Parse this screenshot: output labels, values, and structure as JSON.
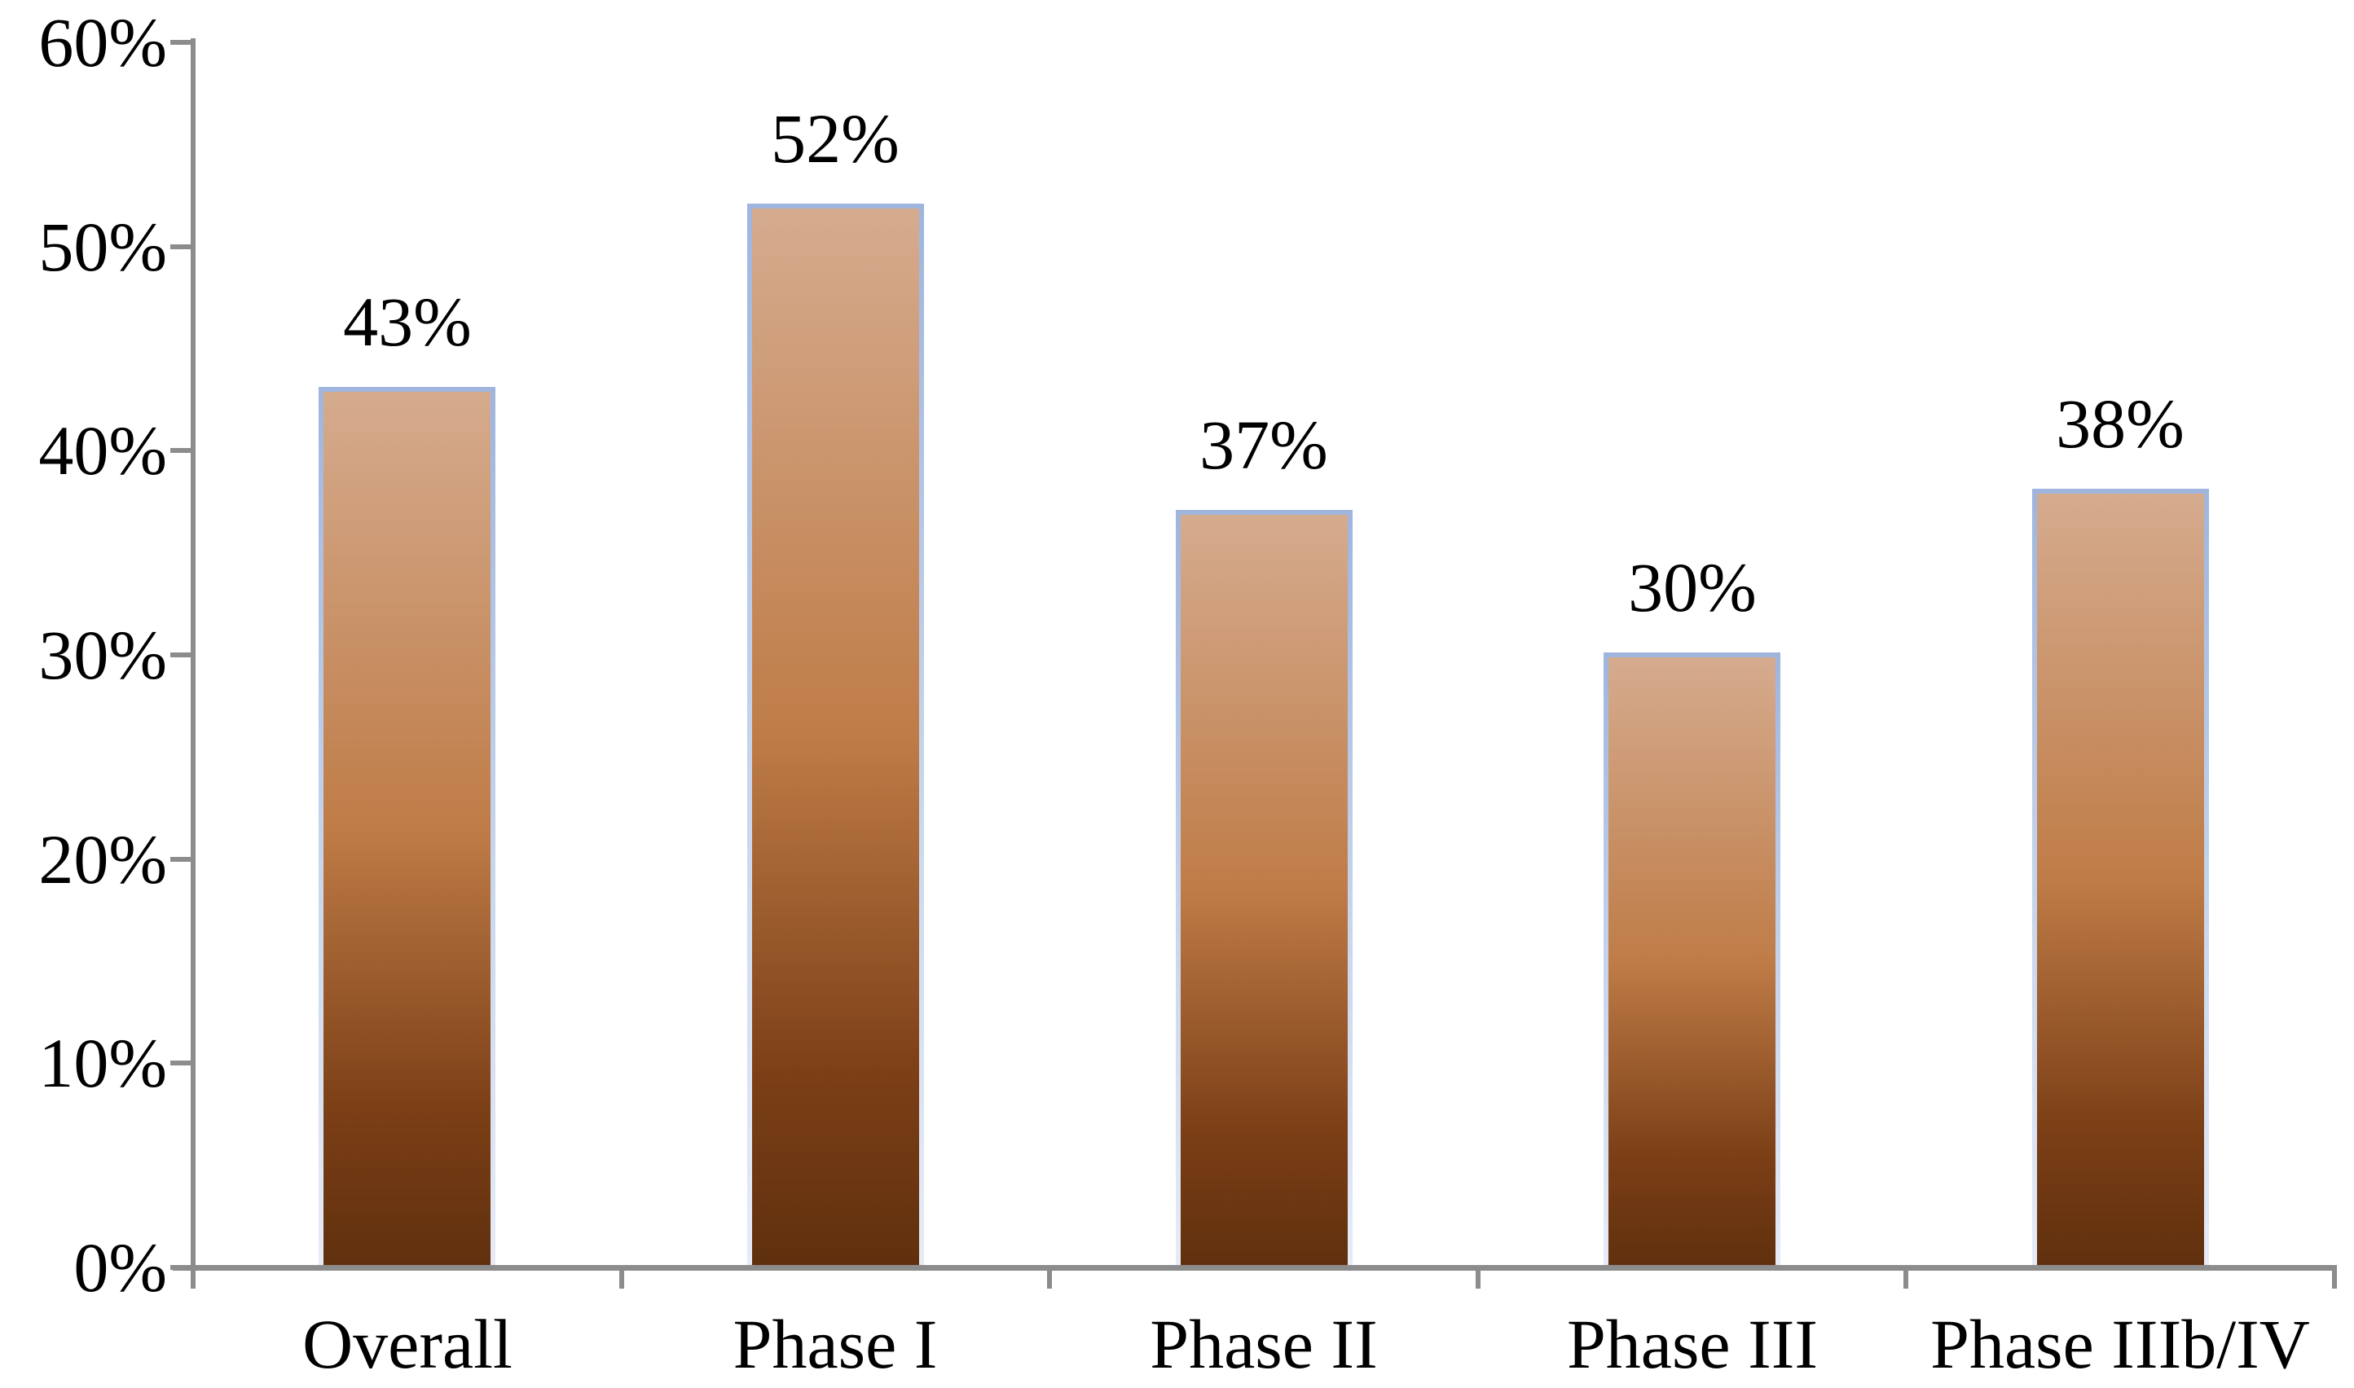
{
  "chart_data": {
    "type": "bar",
    "title": "",
    "xlabel": "",
    "ylabel": "",
    "categories": [
      "Overall",
      "Phase I",
      "Phase II",
      "Phase III",
      "Phase IIIb/IV"
    ],
    "values": [
      43,
      52,
      37,
      30,
      38
    ],
    "data_labels": [
      "43%",
      "52%",
      "37%",
      "30%",
      "38%"
    ],
    "y_ticks": [
      {
        "value": 0,
        "label": "0%"
      },
      {
        "value": 10,
        "label": "10%"
      },
      {
        "value": 20,
        "label": "20%"
      },
      {
        "value": 30,
        "label": "30%"
      },
      {
        "value": 40,
        "label": "40%"
      },
      {
        "value": 50,
        "label": "50%"
      },
      {
        "value": 60,
        "label": "60%"
      }
    ],
    "ylim": [
      0,
      60
    ],
    "grid": "off",
    "legend": "none",
    "colors": {
      "axis": "#8c8c8c",
      "text": "#000000",
      "bar_fill_top": "#d5ab8e",
      "bar_fill_mid": "#bf7c47",
      "bar_fill_low": "#7c3f16",
      "bar_fill_bottom": "#60300e",
      "bar_border_top": "#9fb5dd",
      "bar_border_mid": "#c8d6ec",
      "bar_border_bottom": "#e6ebf6"
    }
  }
}
